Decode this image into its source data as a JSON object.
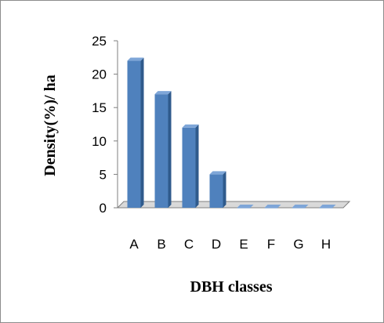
{
  "chart_data": {
    "type": "bar",
    "title": "",
    "xlabel": "DBH classes",
    "ylabel": "Density(%)/ ha",
    "categories": [
      "A",
      "B",
      "C",
      "D",
      "E",
      "F",
      "G",
      "H"
    ],
    "values": [
      22,
      17,
      12,
      5,
      0,
      0,
      0,
      0
    ],
    "ylim": [
      0,
      25
    ],
    "yticks": [
      0,
      5,
      10,
      15,
      20,
      25
    ],
    "grid": false,
    "legend": "none",
    "three_d": true,
    "colors": {
      "bar_front": "#4f81bd",
      "bar_side": "#2f5a8c",
      "bar_top": "#7ea6d8",
      "axis": "#7f7f7f",
      "floor": "#d9d9d9",
      "frame": "#8c8c8c"
    }
  }
}
